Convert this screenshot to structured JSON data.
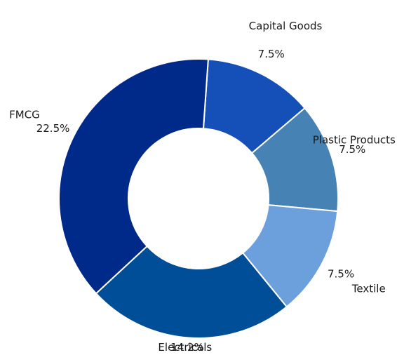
{
  "chart_data": {
    "type": "pie",
    "donut": true,
    "start_angle_deg": 86,
    "direction": "clockwise",
    "categories": [
      "Capital Goods",
      "Plastic Products",
      "Textile",
      "Electricals",
      "FMCG"
    ],
    "values": [
      7.5,
      7.5,
      7.5,
      14.2,
      22.5
    ],
    "value_labels": [
      "7.5%",
      "7.5%",
      "7.5%",
      "14.2%",
      "22.5%"
    ],
    "colors": [
      "#1550B8",
      "#4682B4",
      "#6CA0DC",
      "#004E98",
      "#002A8A"
    ],
    "title": "",
    "legend": "none"
  }
}
